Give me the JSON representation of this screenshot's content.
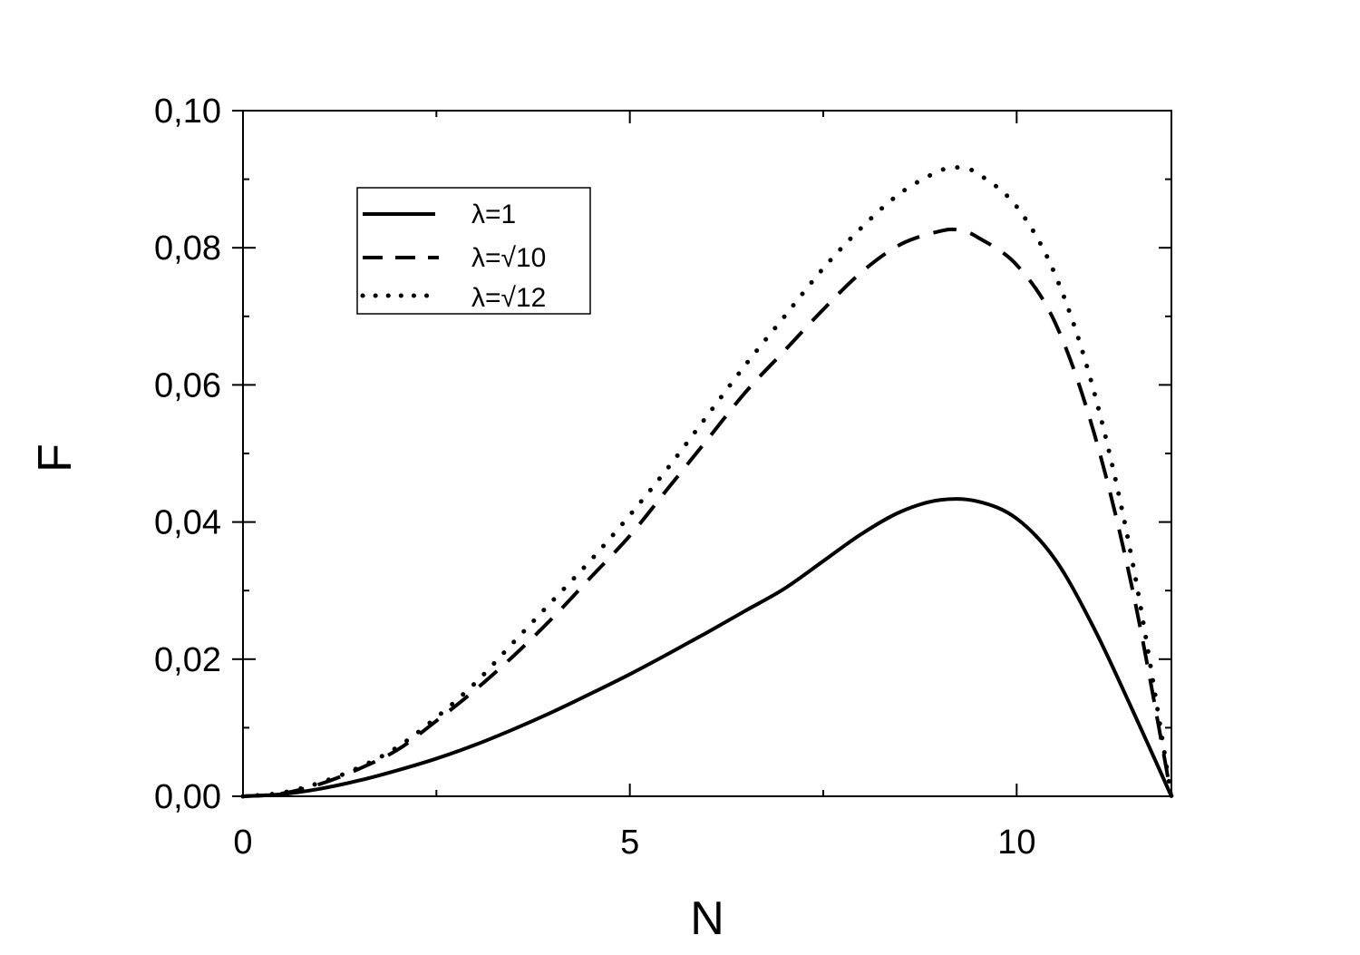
{
  "chart_data": {
    "type": "line",
    "title": "",
    "xlabel": "N",
    "ylabel": "F",
    "xlim": [
      0,
      12
    ],
    "ylim": [
      0,
      0.1
    ],
    "grid": false,
    "legend_position": "top-left",
    "x_ticks": [
      {
        "value": 0,
        "label": "0"
      },
      {
        "value": 5,
        "label": "5"
      },
      {
        "value": 10,
        "label": "10"
      }
    ],
    "x_minor_step": 2.5,
    "y_ticks": [
      {
        "value": 0,
        "label": "0,00"
      },
      {
        "value": 0.02,
        "label": "0,02"
      },
      {
        "value": 0.04,
        "label": "0,04"
      },
      {
        "value": 0.06,
        "label": "0,06"
      },
      {
        "value": 0.08,
        "label": "0,08"
      },
      {
        "value": 0.1,
        "label": "0,10"
      }
    ],
    "y_minor_step": 0.01,
    "series": [
      {
        "name": "λ=1",
        "style": "solid",
        "color": "#000000",
        "x": [
          0,
          0.5,
          1,
          1.5,
          2,
          2.5,
          3,
          3.5,
          4,
          4.5,
          5,
          5.5,
          6,
          6.5,
          7,
          7.5,
          8,
          8.5,
          9,
          9.5,
          10,
          10.5,
          11,
          11.5,
          12
        ],
        "y": [
          0,
          0.0003,
          0.0011,
          0.0023,
          0.0038,
          0.0055,
          0.0075,
          0.0098,
          0.0123,
          0.015,
          0.0178,
          0.0208,
          0.0239,
          0.0271,
          0.0303,
          0.0343,
          0.0383,
          0.0415,
          0.0432,
          0.043,
          0.0405,
          0.0345,
          0.0245,
          0.0125,
          0
        ]
      },
      {
        "name": "λ=√10",
        "style": "dashed",
        "color": "#000000",
        "x": [
          0,
          0.5,
          1,
          1.5,
          2,
          2.5,
          3,
          3.5,
          4,
          4.5,
          5,
          5.5,
          6,
          6.5,
          7,
          7.5,
          8,
          8.5,
          9,
          9.25,
          9.5,
          10,
          10.5,
          11,
          11.5,
          12
        ],
        "y": [
          0,
          0.0004,
          0.0018,
          0.004,
          0.0068,
          0.011,
          0.0155,
          0.0205,
          0.026,
          0.032,
          0.038,
          0.045,
          0.052,
          0.059,
          0.065,
          0.071,
          0.0765,
          0.0805,
          0.0824,
          0.0826,
          0.0815,
          0.0775,
          0.069,
          0.053,
          0.03,
          0
        ]
      },
      {
        "name": "λ=√12",
        "style": "dotted",
        "color": "#000000",
        "x": [
          0,
          0.5,
          1,
          1.5,
          2,
          2.5,
          3,
          3.5,
          4,
          4.5,
          5,
          5.5,
          6,
          6.5,
          7,
          7.5,
          8,
          8.5,
          9,
          9.25,
          9.5,
          10,
          10.5,
          11,
          11.5,
          12
        ],
        "y": [
          0,
          0.0005,
          0.002,
          0.0042,
          0.0072,
          0.0115,
          0.0165,
          0.0225,
          0.0285,
          0.0345,
          0.041,
          0.048,
          0.0555,
          0.063,
          0.07,
          0.077,
          0.083,
          0.088,
          0.0912,
          0.0917,
          0.0908,
          0.086,
          0.076,
          0.059,
          0.034,
          0
        ]
      }
    ]
  }
}
